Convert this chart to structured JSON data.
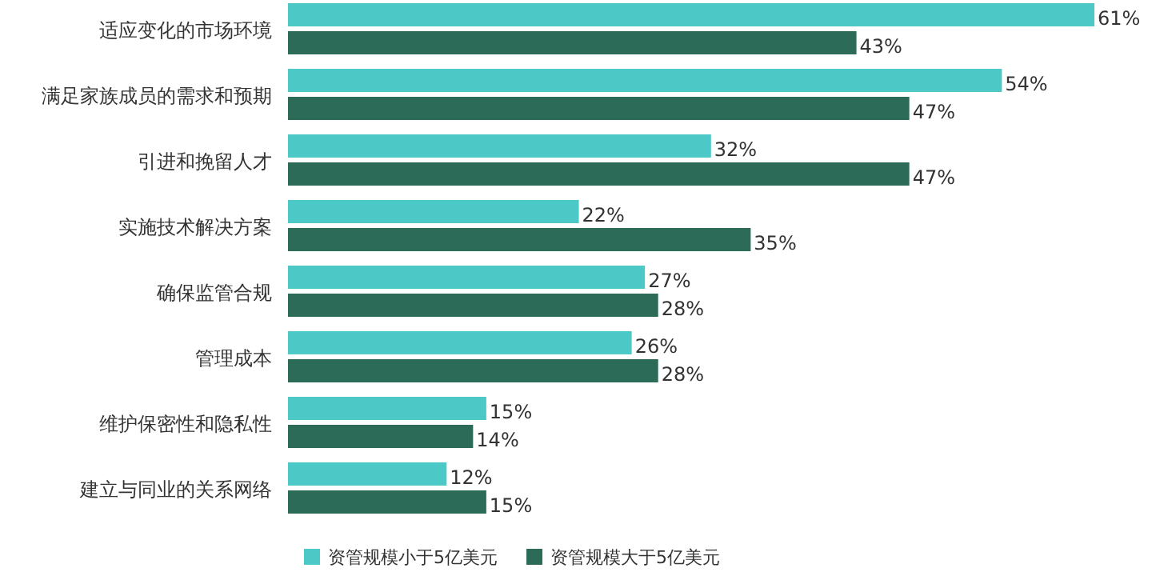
{
  "chart_data": {
    "type": "bar",
    "orientation": "horizontal",
    "legend": "bottom",
    "categories": [
      "适应变化的市场环境",
      "满足家族成员的需求和预期",
      "引进和挽留人才",
      "实施技术解决方案",
      "确保监管合规",
      "管理成本",
      "维护保密性和隐私性",
      "建立与同业的关系网络"
    ],
    "series": [
      {
        "name": "资管规模小于5亿美元",
        "color": "#4cc9c6",
        "values": [
          61,
          54,
          32,
          22,
          27,
          26,
          15,
          12
        ],
        "value_labels": [
          "61%",
          "54%",
          "32%",
          "22%",
          "27%",
          "26%",
          "15%",
          "12%"
        ]
      },
      {
        "name": "资管规模大于5亿美元",
        "color": "#2b6b58",
        "values": [
          43,
          47,
          47,
          35,
          28,
          28,
          14,
          15
        ],
        "value_labels": [
          "43%",
          "47%",
          "47%",
          "35%",
          "28%",
          "28%",
          "14%",
          "15%"
        ]
      }
    ]
  }
}
